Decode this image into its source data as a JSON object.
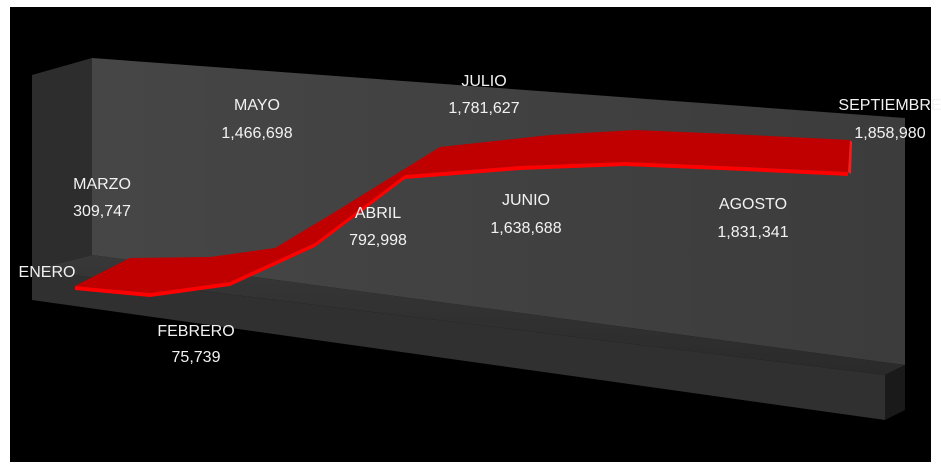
{
  "chart_data": {
    "type": "line",
    "style": "3d-ribbon",
    "title": "",
    "xlabel": "",
    "ylabel": "",
    "grid": false,
    "legend": "none",
    "categories": [
      "ENERO",
      "FEBRERO",
      "MARZO",
      "ABRIL",
      "MAYO",
      "JUNIO",
      "JULIO",
      "AGOSTO",
      "SEPTIEMBRE"
    ],
    "values": [
      null,
      75739,
      309747,
      792998,
      1466698,
      1638688,
      1781627,
      1831341,
      1858980
    ],
    "value_labels": [
      "",
      "75,739",
      "309,747",
      "792,998",
      "1,466,698",
      "1,638,688",
      "1,781,627",
      "1,831,341",
      "1,858,980"
    ],
    "series_color": "#ff0000",
    "background_color": "#000000",
    "wall_color": "#3a3a3a"
  }
}
